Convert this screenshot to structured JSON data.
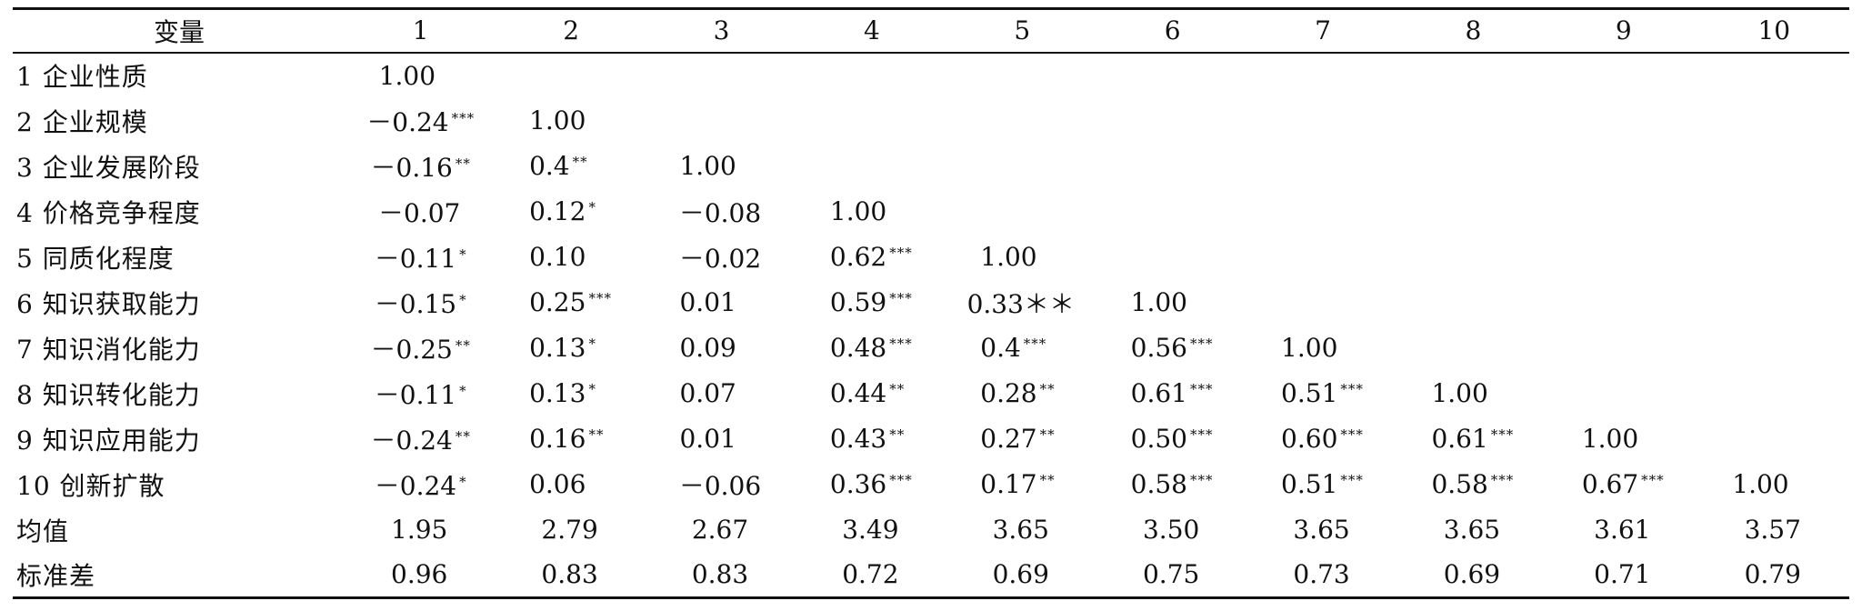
{
  "table": {
    "columns": [
      "变量",
      "1",
      "2",
      "3",
      "4",
      "5",
      "6",
      "7",
      "8",
      "9",
      "10"
    ],
    "rows": [
      {
        "label": "1 企业性质",
        "cells": [
          [
            "1.00",
            ""
          ],
          [
            "",
            ""
          ],
          [
            "",
            ""
          ],
          [
            "",
            ""
          ],
          [
            "",
            ""
          ],
          [
            "",
            ""
          ],
          [
            "",
            ""
          ],
          [
            "",
            ""
          ],
          [
            "",
            ""
          ],
          [
            "",
            ""
          ]
        ]
      },
      {
        "label": "2 企业规模",
        "cells": [
          [
            "－0.24",
            "***"
          ],
          [
            "1.00",
            ""
          ],
          [
            "",
            ""
          ],
          [
            "",
            ""
          ],
          [
            "",
            ""
          ],
          [
            "",
            ""
          ],
          [
            "",
            ""
          ],
          [
            "",
            ""
          ],
          [
            "",
            ""
          ],
          [
            "",
            ""
          ]
        ]
      },
      {
        "label": "3 企业发展阶段",
        "cells": [
          [
            "－0.16",
            "**"
          ],
          [
            "0.4",
            "**"
          ],
          [
            "1.00",
            ""
          ],
          [
            "",
            ""
          ],
          [
            "",
            ""
          ],
          [
            "",
            ""
          ],
          [
            "",
            ""
          ],
          [
            "",
            ""
          ],
          [
            "",
            ""
          ],
          [
            "",
            ""
          ]
        ]
      },
      {
        "label": "4 价格竞争程度",
        "cells": [
          [
            "－0.07",
            ""
          ],
          [
            "0.12",
            "*"
          ],
          [
            "－0.08",
            ""
          ],
          [
            "1.00",
            ""
          ],
          [
            "",
            ""
          ],
          [
            "",
            ""
          ],
          [
            "",
            ""
          ],
          [
            "",
            ""
          ],
          [
            "",
            ""
          ],
          [
            "",
            ""
          ]
        ]
      },
      {
        "label": "5 同质化程度",
        "cells": [
          [
            "－0.11",
            "*"
          ],
          [
            "0.10",
            ""
          ],
          [
            "－0.02",
            ""
          ],
          [
            "0.62",
            "***"
          ],
          [
            "1.00",
            ""
          ],
          [
            "",
            ""
          ],
          [
            "",
            ""
          ],
          [
            "",
            ""
          ],
          [
            "",
            ""
          ],
          [
            "",
            ""
          ]
        ]
      },
      {
        "label": "6 知识获取能力",
        "cells": [
          [
            "－0.15",
            "*"
          ],
          [
            "0.25",
            "***"
          ],
          [
            "0.01",
            ""
          ],
          [
            "0.59",
            "***"
          ],
          [
            "0.33＊＊",
            ""
          ],
          [
            "1.00",
            ""
          ],
          [
            "",
            ""
          ],
          [
            "",
            ""
          ],
          [
            "",
            ""
          ],
          [
            "",
            ""
          ]
        ]
      },
      {
        "label": "7 知识消化能力",
        "cells": [
          [
            "－0.25",
            "**"
          ],
          [
            "0.13",
            "*"
          ],
          [
            "0.09",
            ""
          ],
          [
            "0.48",
            "***"
          ],
          [
            "0.4",
            "***"
          ],
          [
            "0.56",
            "***"
          ],
          [
            "1.00",
            ""
          ],
          [
            "",
            ""
          ],
          [
            "",
            ""
          ],
          [
            "",
            ""
          ]
        ]
      },
      {
        "label": "8 知识转化能力",
        "cells": [
          [
            "－0.11",
            "*"
          ],
          [
            "0.13",
            "*"
          ],
          [
            "0.07",
            ""
          ],
          [
            "0.44",
            "**"
          ],
          [
            "0.28",
            "**"
          ],
          [
            "0.61",
            "***"
          ],
          [
            "0.51",
            "***"
          ],
          [
            "1.00",
            ""
          ],
          [
            "",
            ""
          ],
          [
            "",
            ""
          ]
        ]
      },
      {
        "label": "9 知识应用能力",
        "cells": [
          [
            "－0.24",
            "**"
          ],
          [
            "0.16",
            "**"
          ],
          [
            "0.01",
            ""
          ],
          [
            "0.43",
            "**"
          ],
          [
            "0.27",
            "**"
          ],
          [
            "0.50",
            "***"
          ],
          [
            "0.60",
            "***"
          ],
          [
            "0.61",
            "***"
          ],
          [
            "1.00",
            ""
          ],
          [
            "",
            ""
          ]
        ]
      },
      {
        "label": "10 创新扩散",
        "cells": [
          [
            "－0.24",
            "*"
          ],
          [
            "0.06",
            ""
          ],
          [
            "－0.06",
            ""
          ],
          [
            "0.36",
            "***"
          ],
          [
            "0.17",
            "**"
          ],
          [
            "0.58",
            "***"
          ],
          [
            "0.51",
            "***"
          ],
          [
            "0.58",
            "***"
          ],
          [
            "0.67",
            "***"
          ],
          [
            "1.00",
            ""
          ]
        ]
      },
      {
        "label": "均值",
        "plain": true,
        "cells": [
          [
            "1.95",
            ""
          ],
          [
            "2.79",
            ""
          ],
          [
            "2.67",
            ""
          ],
          [
            "3.49",
            ""
          ],
          [
            "3.65",
            ""
          ],
          [
            "3.50",
            ""
          ],
          [
            "3.65",
            ""
          ],
          [
            "3.65",
            ""
          ],
          [
            "3.61",
            ""
          ],
          [
            "3.57",
            ""
          ]
        ]
      },
      {
        "label": "标准差",
        "plain": true,
        "cells": [
          [
            "0.96",
            ""
          ],
          [
            "0.83",
            ""
          ],
          [
            "0.83",
            ""
          ],
          [
            "0.72",
            ""
          ],
          [
            "0.69",
            ""
          ],
          [
            "0.75",
            ""
          ],
          [
            "0.73",
            ""
          ],
          [
            "0.69",
            ""
          ],
          [
            "0.71",
            ""
          ],
          [
            "0.79",
            ""
          ]
        ]
      }
    ]
  }
}
